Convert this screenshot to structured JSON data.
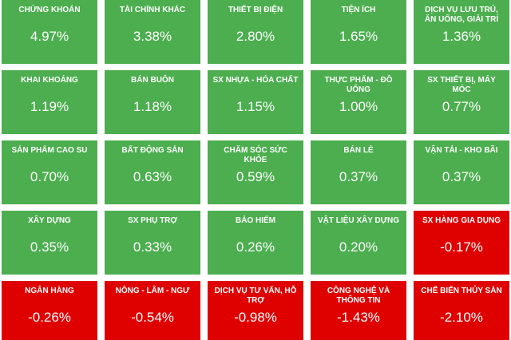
{
  "tiles": [
    {
      "label": "CHỨNG KHOÁN",
      "value": "4.97%",
      "color": "#4cae4f"
    },
    {
      "label": "TÀI CHÍNH KHÁC",
      "value": "3.38%",
      "color": "#4cae4f"
    },
    {
      "label": "THIẾT BỊ ĐIỆN",
      "value": "2.80%",
      "color": "#4cae4f"
    },
    {
      "label": "TIỆN ÍCH",
      "value": "1.65%",
      "color": "#4cae4f"
    },
    {
      "label": "DỊCH VỤ LƯU TRÚ, ĂN UỐNG, GIẢI TRÍ",
      "value": "1.36%",
      "color": "#4cae4f"
    },
    {
      "label": "KHAI KHOÁNG",
      "value": "1.19%",
      "color": "#4cae4f"
    },
    {
      "label": "BÁN BUÔN",
      "value": "1.18%",
      "color": "#4cae4f"
    },
    {
      "label": "SX NHỰA - HÓA CHẤT",
      "value": "1.15%",
      "color": "#4cae4f"
    },
    {
      "label": "THỰC PHẨM - ĐỒ UỐNG",
      "value": "1.00%",
      "color": "#4cae4f"
    },
    {
      "label": "SX THIẾT BỊ, MÁY MÓC",
      "value": "0.77%",
      "color": "#4cae4f"
    },
    {
      "label": "SẢN PHẨM CAO SU",
      "value": "0.70%",
      "color": "#4cae4f"
    },
    {
      "label": "BẤT ĐỘNG SẢN",
      "value": "0.63%",
      "color": "#4cae4f"
    },
    {
      "label": "CHĂM SÓC SỨC KHỎE",
      "value": "0.59%",
      "color": "#4cae4f"
    },
    {
      "label": "BÁN LẺ",
      "value": "0.37%",
      "color": "#4cae4f"
    },
    {
      "label": "VẬN TẢI - KHO BÃI",
      "value": "0.37%",
      "color": "#4cae4f"
    },
    {
      "label": "XÂY DỰNG",
      "value": "0.35%",
      "color": "#4cae4f"
    },
    {
      "label": "SX PHỤ TRỢ",
      "value": "0.33%",
      "color": "#4cae4f"
    },
    {
      "label": "BẢO HIỂM",
      "value": "0.26%",
      "color": "#4cae4f"
    },
    {
      "label": "VẬT LIỆU XÂY DỰNG",
      "value": "0.20%",
      "color": "#4cae4f"
    },
    {
      "label": "SX HÀNG GIA DỤNG",
      "value": "-0.17%",
      "color": "#df0000"
    },
    {
      "label": "NGÂN HÀNG",
      "value": "-0.26%",
      "color": "#df0000"
    },
    {
      "label": "NÔNG - LÂM - NGƯ",
      "value": "-0.54%",
      "color": "#df0000"
    },
    {
      "label": "DỊCH VỤ TƯ VẤN, HỖ TRỢ",
      "value": "-0.98%",
      "color": "#df0000"
    },
    {
      "label": "CÔNG NGHỆ VÀ THÔNG TIN",
      "value": "-1.43%",
      "color": "#df0000"
    },
    {
      "label": "CHẾ BIẾN THỦY SẢN",
      "value": "-2.10%",
      "color": "#df0000"
    }
  ]
}
